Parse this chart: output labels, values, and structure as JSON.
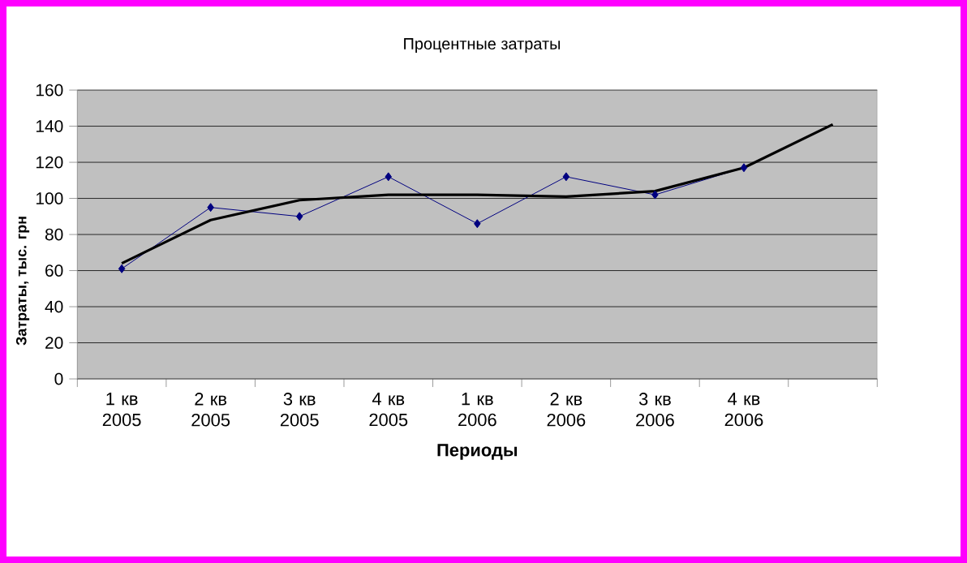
{
  "chart_data": {
    "type": "line",
    "title": "Процентные затраты",
    "xlabel": "Периоды",
    "ylabel": "Затраты, тыс. грн",
    "categories": [
      "1 кв 2005",
      "2 кв 2005",
      "3 кв 2005",
      "4 кв 2005",
      "1 кв 2006",
      "2 кв 2006",
      "3 кв 2006",
      "4 кв 2006",
      null
    ],
    "series": [
      {
        "color": "#000080",
        "marker": "diamond",
        "values": [
          61,
          95,
          90,
          112,
          86,
          112,
          102,
          117,
          null
        ]
      },
      {
        "type": "line",
        "color": "#000000",
        "marker": "none",
        "values": [
          64,
          88,
          99,
          102,
          102,
          101,
          104,
          117,
          141
        ]
      }
    ],
    "ylim": [
      0,
      160
    ],
    "yticks": [
      0,
      20,
      40,
      60,
      80,
      100,
      120,
      140,
      160
    ],
    "grid": "y"
  }
}
